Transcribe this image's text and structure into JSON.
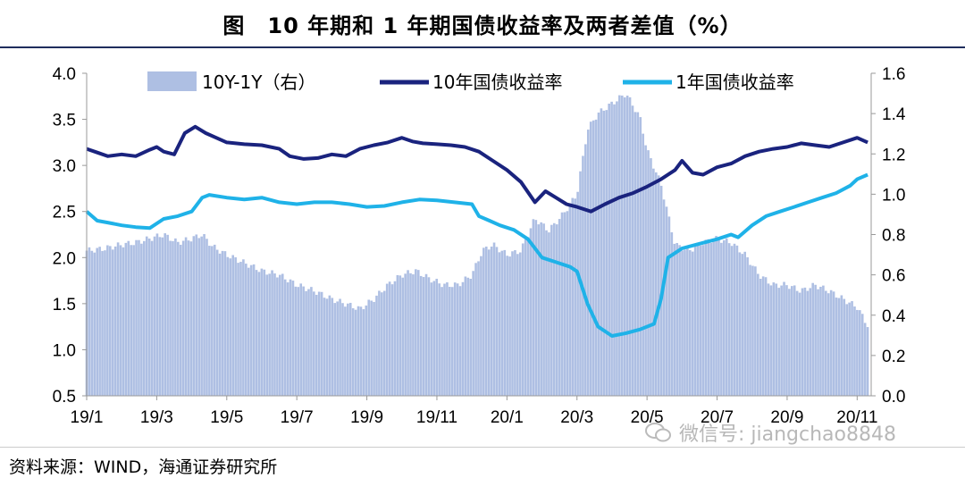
{
  "title": "图　10 年期和 1 年期国债收益率及两者差值（%）",
  "source": "资料来源：WIND，海通证券研究所",
  "watermark": "微信号: jiangchao8848",
  "colors": {
    "spread": "#aebfe3",
    "y10": "#1a237e",
    "y1": "#1fb2e8"
  },
  "chart_data": {
    "type": "bar+line",
    "x_ticks": [
      "19/1",
      "19/3",
      "19/5",
      "19/7",
      "19/9",
      "19/11",
      "20/1",
      "20/3",
      "20/5",
      "20/7",
      "20/9",
      "20/11"
    ],
    "legend": [
      "10Y-1Y（右）",
      "10年国债收益率",
      "1年国债收益率"
    ],
    "y_left": {
      "range": [
        0.5,
        4.0
      ],
      "ticks": [
        "4.0",
        "3.5",
        "3.0",
        "2.5",
        "2.0",
        "1.5",
        "1.0",
        "0.5"
      ]
    },
    "y_right": {
      "range": [
        0.0,
        1.6
      ],
      "ticks": [
        "1.6",
        "1.4",
        "1.2",
        "1.0",
        "0.8",
        "0.6",
        "0.4",
        "0.2",
        "0.0"
      ]
    },
    "series_10y": {
      "name": "10年国债收益率",
      "points": [
        [
          0,
          3.18
        ],
        [
          0.3,
          3.14
        ],
        [
          0.6,
          3.1
        ],
        [
          1.0,
          3.12
        ],
        [
          1.4,
          3.1
        ],
        [
          1.8,
          3.17
        ],
        [
          2.0,
          3.2
        ],
        [
          2.2,
          3.15
        ],
        [
          2.5,
          3.12
        ],
        [
          2.8,
          3.35
        ],
        [
          3.1,
          3.42
        ],
        [
          3.4,
          3.35
        ],
        [
          3.7,
          3.3
        ],
        [
          4.0,
          3.25
        ],
        [
          4.5,
          3.23
        ],
        [
          5.0,
          3.22
        ],
        [
          5.5,
          3.18
        ],
        [
          5.8,
          3.1
        ],
        [
          6.2,
          3.07
        ],
        [
          6.6,
          3.08
        ],
        [
          7.0,
          3.12
        ],
        [
          7.4,
          3.1
        ],
        [
          7.8,
          3.18
        ],
        [
          8.2,
          3.22
        ],
        [
          8.6,
          3.25
        ],
        [
          9.0,
          3.3
        ],
        [
          9.3,
          3.26
        ],
        [
          9.6,
          3.24
        ],
        [
          10.0,
          3.23
        ],
        [
          10.4,
          3.22
        ],
        [
          10.8,
          3.2
        ],
        [
          11.2,
          3.15
        ],
        [
          11.6,
          3.05
        ],
        [
          12.0,
          2.95
        ],
        [
          12.4,
          2.82
        ],
        [
          12.8,
          2.6
        ],
        [
          13.1,
          2.72
        ],
        [
          13.4,
          2.65
        ],
        [
          13.7,
          2.58
        ],
        [
          14.0,
          2.55
        ],
        [
          14.4,
          2.5
        ],
        [
          14.8,
          2.58
        ],
        [
          15.2,
          2.65
        ],
        [
          15.6,
          2.7
        ],
        [
          16.0,
          2.77
        ],
        [
          16.4,
          2.85
        ],
        [
          16.8,
          2.95
        ],
        [
          17.0,
          3.05
        ],
        [
          17.3,
          2.92
        ],
        [
          17.6,
          2.9
        ],
        [
          18.0,
          2.98
        ],
        [
          18.4,
          3.02
        ],
        [
          18.8,
          3.1
        ],
        [
          19.2,
          3.15
        ],
        [
          19.6,
          3.18
        ],
        [
          20.0,
          3.2
        ],
        [
          20.4,
          3.24
        ],
        [
          20.8,
          3.22
        ],
        [
          21.2,
          3.2
        ],
        [
          21.6,
          3.25
        ],
        [
          22.0,
          3.3
        ],
        [
          22.3,
          3.25
        ]
      ]
    },
    "series_1y": {
      "name": "1年国债收益率",
      "points": [
        [
          0,
          2.5
        ],
        [
          0.3,
          2.4
        ],
        [
          0.6,
          2.38
        ],
        [
          1.0,
          2.35
        ],
        [
          1.4,
          2.33
        ],
        [
          1.8,
          2.32
        ],
        [
          2.2,
          2.42
        ],
        [
          2.6,
          2.45
        ],
        [
          3.0,
          2.5
        ],
        [
          3.3,
          2.65
        ],
        [
          3.5,
          2.68
        ],
        [
          4.0,
          2.65
        ],
        [
          4.5,
          2.63
        ],
        [
          5.0,
          2.65
        ],
        [
          5.5,
          2.6
        ],
        [
          6.0,
          2.58
        ],
        [
          6.5,
          2.6
        ],
        [
          7.0,
          2.6
        ],
        [
          7.5,
          2.58
        ],
        [
          8.0,
          2.55
        ],
        [
          8.5,
          2.56
        ],
        [
          9.0,
          2.6
        ],
        [
          9.5,
          2.63
        ],
        [
          10.0,
          2.62
        ],
        [
          10.5,
          2.6
        ],
        [
          11.0,
          2.58
        ],
        [
          11.2,
          2.45
        ],
        [
          11.5,
          2.4
        ],
        [
          11.8,
          2.35
        ],
        [
          12.2,
          2.3
        ],
        [
          12.6,
          2.2
        ],
        [
          13.0,
          2.0
        ],
        [
          13.4,
          1.95
        ],
        [
          13.8,
          1.9
        ],
        [
          14.0,
          1.85
        ],
        [
          14.3,
          1.5
        ],
        [
          14.6,
          1.25
        ],
        [
          15.0,
          1.15
        ],
        [
          15.4,
          1.18
        ],
        [
          15.8,
          1.22
        ],
        [
          16.2,
          1.28
        ],
        [
          16.4,
          1.55
        ],
        [
          16.6,
          2.0
        ],
        [
          17.0,
          2.1
        ],
        [
          17.5,
          2.15
        ],
        [
          18.0,
          2.2
        ],
        [
          18.4,
          2.25
        ],
        [
          18.6,
          2.22
        ],
        [
          19.0,
          2.35
        ],
        [
          19.4,
          2.45
        ],
        [
          19.8,
          2.5
        ],
        [
          20.2,
          2.55
        ],
        [
          20.6,
          2.6
        ],
        [
          21.0,
          2.65
        ],
        [
          21.4,
          2.7
        ],
        [
          21.8,
          2.78
        ],
        [
          22.0,
          2.85
        ],
        [
          22.3,
          2.9
        ]
      ]
    },
    "series_spread": {
      "name": "10Y-1Y（右）",
      "points": [
        [
          0,
          0.72
        ],
        [
          0.5,
          0.73
        ],
        [
          1.0,
          0.75
        ],
        [
          1.4,
          0.76
        ],
        [
          1.8,
          0.78
        ],
        [
          2.2,
          0.8
        ],
        [
          2.6,
          0.76
        ],
        [
          3.0,
          0.78
        ],
        [
          3.3,
          0.8
        ],
        [
          3.6,
          0.74
        ],
        [
          4.0,
          0.7
        ],
        [
          4.5,
          0.66
        ],
        [
          5.0,
          0.62
        ],
        [
          5.5,
          0.6
        ],
        [
          6.0,
          0.55
        ],
        [
          6.5,
          0.52
        ],
        [
          7.0,
          0.48
        ],
        [
          7.5,
          0.45
        ],
        [
          7.8,
          0.43
        ],
        [
          8.2,
          0.48
        ],
        [
          8.6,
          0.55
        ],
        [
          9.0,
          0.6
        ],
        [
          9.4,
          0.62
        ],
        [
          9.8,
          0.58
        ],
        [
          10.2,
          0.55
        ],
        [
          10.6,
          0.55
        ],
        [
          11.0,
          0.6
        ],
        [
          11.3,
          0.72
        ],
        [
          11.6,
          0.75
        ],
        [
          12.0,
          0.7
        ],
        [
          12.4,
          0.72
        ],
        [
          12.8,
          0.88
        ],
        [
          13.2,
          0.82
        ],
        [
          13.6,
          0.9
        ],
        [
          14.0,
          1.0
        ],
        [
          14.3,
          1.32
        ],
        [
          14.6,
          1.4
        ],
        [
          15.0,
          1.45
        ],
        [
          15.4,
          1.5
        ],
        [
          15.8,
          1.38
        ],
        [
          16.0,
          1.22
        ],
        [
          16.4,
          1.05
        ],
        [
          16.8,
          0.75
        ],
        [
          17.2,
          0.72
        ],
        [
          17.6,
          0.76
        ],
        [
          18.0,
          0.78
        ],
        [
          18.4,
          0.76
        ],
        [
          18.8,
          0.7
        ],
        [
          19.2,
          0.6
        ],
        [
          19.6,
          0.55
        ],
        [
          20.0,
          0.55
        ],
        [
          20.4,
          0.52
        ],
        [
          20.8,
          0.55
        ],
        [
          21.2,
          0.52
        ],
        [
          21.6,
          0.48
        ],
        [
          22.0,
          0.44
        ],
        [
          22.3,
          0.35
        ]
      ]
    }
  }
}
